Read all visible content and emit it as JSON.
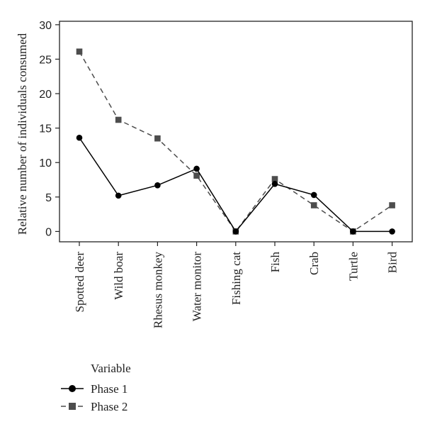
{
  "chart_data": {
    "type": "line",
    "title": "",
    "xlabel": "",
    "ylabel": "Relative number of individuals consumed",
    "categories": [
      "Spotted deer",
      "Wild boar",
      "Rhesus monkey",
      "Water monitor",
      "Fishing cat",
      "Fish",
      "Crab",
      "Turtle",
      "Bird"
    ],
    "ylim": [
      -1.5,
      30.5
    ],
    "yticks": [
      0,
      5,
      10,
      15,
      20,
      25,
      30
    ],
    "grid": false,
    "legend": {
      "title": "Variable",
      "position": "bottom-left"
    },
    "series": [
      {
        "name": "Phase 1",
        "values": [
          13.6,
          5.2,
          6.7,
          9.1,
          0,
          6.9,
          5.3,
          0,
          0
        ],
        "color": "#000000",
        "marker": "circle",
        "dash": "solid"
      },
      {
        "name": "Phase 2",
        "values": [
          26.1,
          16.2,
          13.5,
          8.1,
          0,
          7.6,
          3.8,
          0,
          3.8
        ],
        "color": "#4d4d4d",
        "marker": "square",
        "dash": "dashed"
      }
    ]
  }
}
